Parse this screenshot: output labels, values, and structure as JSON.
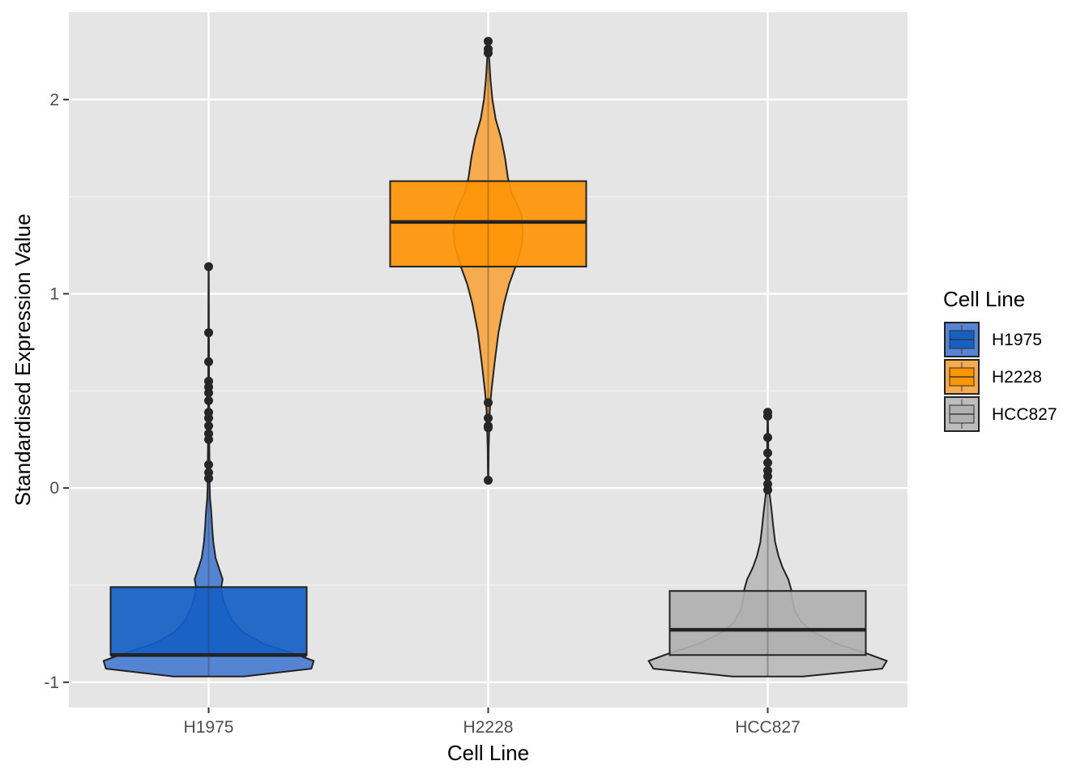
{
  "chart_data": {
    "type": "violin+box",
    "xlabel": "Cell Line",
    "ylabel": "Standardised Expression Value",
    "ylim": [
      -1.13,
      2.45
    ],
    "yticks": [
      -1,
      0,
      1,
      2
    ],
    "ytick_labels": [
      "-1",
      "0",
      "1",
      "2"
    ],
    "categories": [
      "H1975",
      "H2228",
      "HCC827"
    ],
    "grid": true,
    "legend": {
      "title": "Cell Line",
      "position": "right",
      "entries": [
        "H1975",
        "H2228",
        "HCC827"
      ]
    },
    "series": [
      {
        "name": "H1975",
        "color": "#1660C4",
        "violin_fill": "#5585D2",
        "box": {
          "q1": -0.86,
          "median": -0.86,
          "q3": -0.51
        },
        "min": -0.97,
        "outliers": [
          1.14,
          0.8,
          0.65,
          0.55,
          0.52,
          0.49,
          0.45,
          0.39,
          0.36,
          0.32,
          0.28,
          0.25,
          0.12,
          0.08,
          0.05
        ],
        "density": [
          [
            -0.97,
            0.75
          ],
          [
            -0.93,
            2.2
          ],
          [
            -0.89,
            2.25
          ],
          [
            -0.85,
            1.8
          ],
          [
            -0.8,
            1.15
          ],
          [
            -0.74,
            0.72
          ],
          [
            -0.68,
            0.5
          ],
          [
            -0.62,
            0.38
          ],
          [
            -0.56,
            0.3
          ],
          [
            -0.51,
            0.27
          ],
          [
            -0.47,
            0.3
          ],
          [
            -0.42,
            0.23
          ],
          [
            -0.36,
            0.15
          ],
          [
            -0.28,
            0.1
          ],
          [
            -0.2,
            0.075
          ],
          [
            -0.12,
            0.055
          ],
          [
            -0.05,
            0.03
          ],
          [
            0.02,
            0.02
          ],
          [
            0.08,
            0.035
          ],
          [
            0.15,
            0.018
          ],
          [
            0.3,
            0.012
          ],
          [
            0.5,
            0.01
          ],
          [
            0.8,
            0.007
          ],
          [
            1.14,
            0.004
          ]
        ]
      },
      {
        "name": "H2228",
        "color": "#FF9406",
        "violin_fill": "#F5AB4E",
        "box": {
          "q1": 1.14,
          "median": 1.37,
          "q3": 1.58
        },
        "min": 0.04,
        "outliers": [
          2.3,
          2.26,
          2.24,
          0.44,
          0.36,
          0.32,
          0.31,
          0.04
        ],
        "density": [
          [
            0.04,
            0.006
          ],
          [
            0.2,
            0.01
          ],
          [
            0.4,
            0.035
          ],
          [
            0.5,
            0.07
          ],
          [
            0.65,
            0.14
          ],
          [
            0.8,
            0.22
          ],
          [
            0.95,
            0.34
          ],
          [
            1.05,
            0.45
          ],
          [
            1.15,
            0.6
          ],
          [
            1.25,
            0.72
          ],
          [
            1.32,
            0.74
          ],
          [
            1.4,
            0.72
          ],
          [
            1.47,
            0.6
          ],
          [
            1.52,
            0.5
          ],
          [
            1.6,
            0.42
          ],
          [
            1.7,
            0.36
          ],
          [
            1.8,
            0.28
          ],
          [
            1.9,
            0.16
          ],
          [
            2.0,
            0.09
          ],
          [
            2.1,
            0.05
          ],
          [
            2.2,
            0.025
          ],
          [
            2.3,
            0.006
          ]
        ]
      },
      {
        "name": "HCC827",
        "color": "#B0B0B0",
        "violin_fill": "#BDBDBD",
        "box": {
          "q1": -0.86,
          "median": -0.73,
          "q3": -0.53
        },
        "min": -0.97,
        "outliers": [
          0.39,
          0.37,
          0.26,
          0.18,
          0.13,
          0.09,
          0.06,
          0.02,
          -0.01
        ],
        "density": [
          [
            -0.97,
            0.75
          ],
          [
            -0.93,
            2.45
          ],
          [
            -0.89,
            2.55
          ],
          [
            -0.85,
            2.1
          ],
          [
            -0.8,
            1.45
          ],
          [
            -0.74,
            0.95
          ],
          [
            -0.69,
            0.72
          ],
          [
            -0.63,
            0.58
          ],
          [
            -0.57,
            0.52
          ],
          [
            -0.52,
            0.5
          ],
          [
            -0.47,
            0.44
          ],
          [
            -0.41,
            0.32
          ],
          [
            -0.35,
            0.23
          ],
          [
            -0.28,
            0.16
          ],
          [
            -0.2,
            0.12
          ],
          [
            -0.12,
            0.085
          ],
          [
            -0.05,
            0.05
          ],
          [
            0.0,
            0.025
          ],
          [
            0.1,
            0.015
          ],
          [
            0.39,
            0.005
          ]
        ]
      }
    ]
  }
}
